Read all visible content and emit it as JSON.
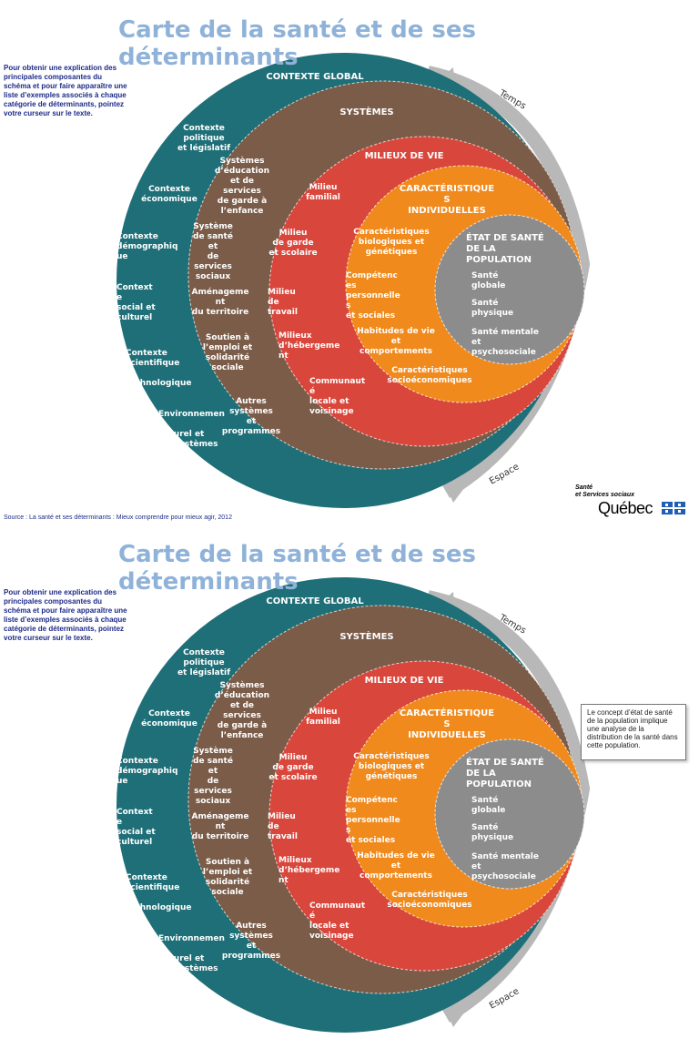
{
  "title": "Carte de la santé et de ses déterminants",
  "instructions": "Pour obtenir une explication des principales composantes du schéma et pour faire apparaître une liste d’exemples associés à chaque catégorie de déterminants, pointez votre curseur sur le texte.",
  "source": "Source : La santé et ses déterminants : Mieux comprendre pour mieux agir, 2012",
  "arrows": {
    "time": "Temps",
    "space": "Espace"
  },
  "logo": {
    "line1": "Santé",
    "line2": "et Services sociaux",
    "name": "Québec"
  },
  "tooltip": "Le concept d’état de santé de la population implique une analyse de la distribution de la santé dans cette population.",
  "rings": {
    "global": {
      "title": "CONTEXTE GLOBAL",
      "items": [
        [
          "Contexte",
          "politique",
          "et législatif"
        ],
        [
          "Contexte",
          "économique"
        ],
        [
          "Contexte",
          "démographiq",
          "ue"
        ],
        [
          "Context",
          "e",
          "social et",
          "culturel"
        ],
        [
          "Contexte",
          "scientifique",
          "et",
          "technologique"
        ],
        [
          "Environnemen",
          "t",
          "naturel et",
          "écosystèmes"
        ]
      ]
    },
    "systems": {
      "title": "SYSTÈMES",
      "items": [
        [
          "Systèmes",
          "d’éducation",
          "et de",
          "services",
          "de garde à",
          "l’enfance"
        ],
        [
          "Système",
          "de santé",
          "et",
          "de",
          "services",
          "sociaux"
        ],
        [
          "Aménageme",
          "nt",
          "du territoire"
        ],
        [
          "Soutien à",
          "l’emploi et",
          "solidarité",
          "sociale"
        ],
        [
          "Autres",
          "systèmes",
          "et",
          "programmes"
        ]
      ]
    },
    "milieux": {
      "title": "MILIEUX DE VIE",
      "items": [
        [
          "Milieu",
          "familial"
        ],
        [
          "Milieu",
          "de garde",
          "et scolaire"
        ],
        [
          "Milieu",
          "de",
          "travail"
        ],
        [
          "Milieux",
          "d’hébergeme",
          "nt"
        ],
        [
          "Communaut",
          "é",
          "locale et",
          "voisinage"
        ]
      ]
    },
    "individuelles": {
      "title": [
        "CARACTÉRISTIQUE",
        "S",
        "INDIVIDUELLES"
      ],
      "items": [
        [
          "Caractéristiques",
          "biologiques et",
          "génétiques"
        ],
        [
          "Compétenc",
          "es",
          "personnelle",
          "s",
          "et sociales"
        ],
        [
          "Habitudes de vie",
          "et",
          "comportements"
        ],
        [
          "Caractéristiques",
          "socioéconomiques"
        ]
      ]
    },
    "etat": {
      "title": [
        "ÉTAT DE SANTÉ",
        "DE LA",
        "POPULATION"
      ],
      "items": [
        [
          "Santé",
          "globale"
        ],
        [
          "Santé",
          "physique"
        ],
        [
          "Santé mentale",
          "et",
          "psychosociale"
        ]
      ]
    }
  },
  "colors": {
    "global": "#1f6f78",
    "systems": "#7a5c49",
    "milieux": "#d9463c",
    "individuelles": "#f08a1c",
    "etat": "#8c8c8c",
    "title": "#8fb2d9",
    "instructions": "#1d2a8a"
  }
}
